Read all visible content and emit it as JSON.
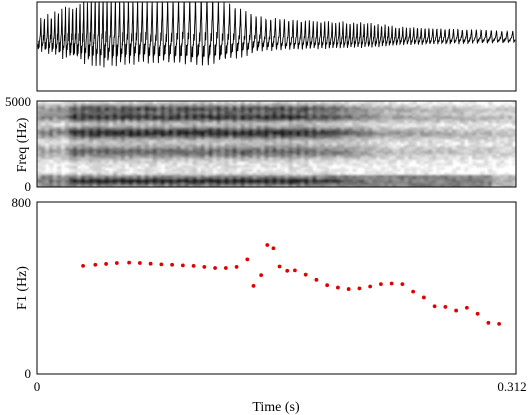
{
  "chart_data": [
    {
      "type": "line",
      "panel": "waveform",
      "title": "",
      "xlabel": "",
      "ylabel": ""
    },
    {
      "type": "heatmap",
      "panel": "spectrogram",
      "ylabel": "Freq (Hz)",
      "ylim": [
        0,
        5000
      ],
      "ytick_labels": [
        "0",
        "5000"
      ]
    },
    {
      "type": "scatter",
      "panel": "formant",
      "xlabel": "Time (s)",
      "ylabel": "F1 (Hz)",
      "xlim": [
        0,
        0.312
      ],
      "ylim": [
        0,
        800
      ],
      "xtick_labels": [
        "0",
        "0.312"
      ],
      "ytick_labels": [
        "0",
        "800"
      ],
      "point_color": "#e00000",
      "series": [
        {
          "x": [
            0.03,
            0.038,
            0.045,
            0.052,
            0.06,
            0.067,
            0.074,
            0.081,
            0.088,
            0.095,
            0.102,
            0.109,
            0.116,
            0.123,
            0.13,
            0.137,
            0.141,
            0.146,
            0.15,
            0.154,
            0.158,
            0.163,
            0.168,
            0.175,
            0.182,
            0.189,
            0.196,
            0.203,
            0.21,
            0.217,
            0.224,
            0.231,
            0.238,
            0.245,
            0.252,
            0.259,
            0.266,
            0.273,
            0.28,
            0.287,
            0.294,
            0.301
          ],
          "y": [
            503,
            508,
            512,
            516,
            518,
            516,
            513,
            510,
            508,
            505,
            503,
            498,
            493,
            493,
            498,
            533,
            410,
            460,
            600,
            585,
            500,
            480,
            482,
            462,
            438,
            413,
            402,
            395,
            398,
            407,
            418,
            421,
            418,
            383,
            356,
            315,
            312,
            295,
            308,
            280,
            238,
            233
          ]
        }
      ]
    }
  ]
}
